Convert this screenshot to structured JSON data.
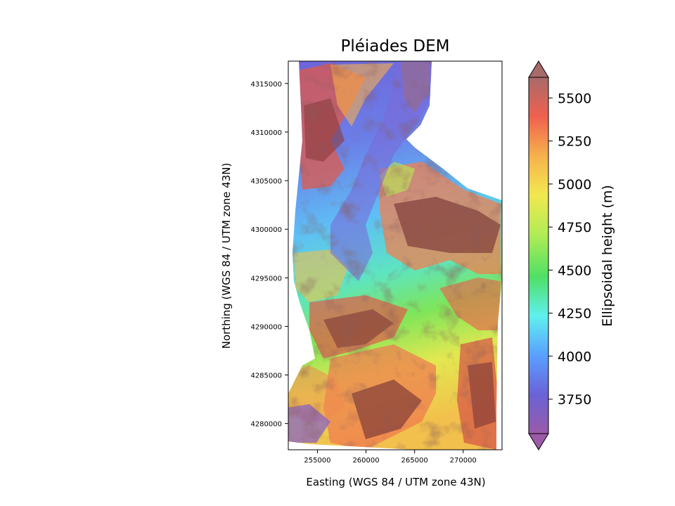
{
  "chart_data": {
    "type": "heatmap",
    "title": "Pléiades DEM",
    "xlabel": "Easting (WGS 84 / UTM zone 43N)",
    "ylabel": "Northing (WGS 84 / UTM zone 43N)",
    "xlim": [
      252000,
      274000
    ],
    "ylim": [
      4277300,
      4317300
    ],
    "xticks": [
      255000,
      260000,
      265000,
      270000
    ],
    "xtick_labels": [
      "255000",
      "260000",
      "265000",
      "270000"
    ],
    "yticks": [
      4280000,
      4285000,
      4290000,
      4295000,
      4300000,
      4305000,
      4310000,
      4315000
    ],
    "ytick_labels": [
      "4280000",
      "4285000",
      "4290000",
      "4295000",
      "4300000",
      "4305000",
      "4310000",
      "4315000"
    ],
    "colorbar": {
      "label": "Ellipsoidal height (m)",
      "range": [
        3550,
        5620
      ],
      "extend": "both",
      "ticks": [
        3750,
        4000,
        4250,
        4500,
        4750,
        5000,
        5250,
        5500
      ],
      "tick_labels": [
        "3750",
        "4000",
        "4250",
        "4500",
        "4750",
        "5000",
        "5250",
        "5500"
      ],
      "colormap": [
        "#9a5aa8",
        "#6a63d6",
        "#5aa0ff",
        "#5ff0ee",
        "#4fe065",
        "#b2ec55",
        "#f2e850",
        "#f6b14c",
        "#f0604f",
        "#a86a6a"
      ]
    },
    "grid": false,
    "hillshade": true
  }
}
